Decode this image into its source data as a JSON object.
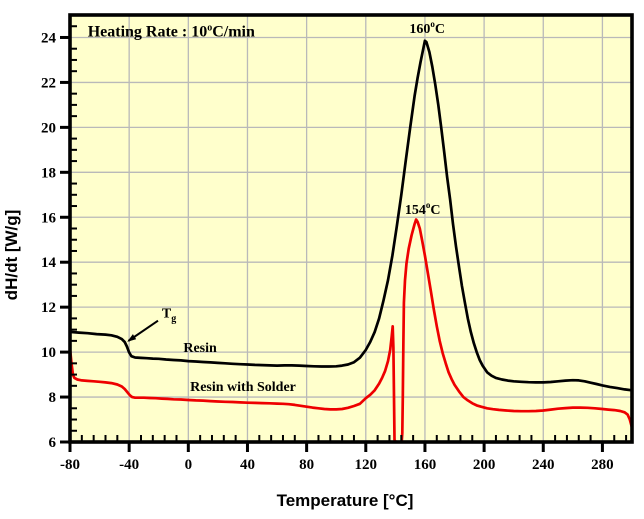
{
  "figure": {
    "plot_bg": "#ffffcc",
    "page_bg": "#ffffff",
    "grid_color": "#b9b9b9",
    "frame_color": "#000000"
  },
  "chart_data": {
    "type": "line",
    "title": "",
    "xlabel": "Temperature [°C]",
    "ylabel": "dH/dt [W/g]",
    "xlim": [
      -80,
      300
    ],
    "ylim": [
      6,
      25
    ],
    "x_major_ticks": [
      -80,
      -40,
      0,
      40,
      80,
      120,
      160,
      200,
      240,
      280
    ],
    "x_minor_step": 8,
    "y_major_ticks": [
      6,
      8,
      10,
      12,
      14,
      16,
      18,
      20,
      22,
      24
    ],
    "y_minor_step": 0.5,
    "grid": true,
    "legend_position": "none",
    "series": [
      {
        "name": "Resin",
        "color": "#000000",
        "peak_temperature_label": "160C",
        "points": [
          [
            -80,
            10.9
          ],
          [
            -74,
            10.87
          ],
          [
            -68,
            10.84
          ],
          [
            -62,
            10.8
          ],
          [
            -56,
            10.78
          ],
          [
            -52,
            10.75
          ],
          [
            -48,
            10.68
          ],
          [
            -45,
            10.58
          ],
          [
            -43,
            10.45
          ],
          [
            -41.5,
            10.25
          ],
          [
            -40,
            9.98
          ],
          [
            -38.5,
            9.82
          ],
          [
            -36,
            9.76
          ],
          [
            -32,
            9.74
          ],
          [
            -28,
            9.73
          ],
          [
            -24,
            9.71
          ],
          [
            -20,
            9.7
          ],
          [
            -15,
            9.67
          ],
          [
            -10,
            9.65
          ],
          [
            -5,
            9.63
          ],
          [
            0,
            9.6
          ],
          [
            5,
            9.58
          ],
          [
            10,
            9.56
          ],
          [
            15,
            9.54
          ],
          [
            20,
            9.52
          ],
          [
            25,
            9.5
          ],
          [
            30,
            9.48
          ],
          [
            35,
            9.46
          ],
          [
            40,
            9.45
          ],
          [
            45,
            9.43
          ],
          [
            50,
            9.42
          ],
          [
            55,
            9.41
          ],
          [
            60,
            9.4
          ],
          [
            65,
            9.41
          ],
          [
            70,
            9.41
          ],
          [
            75,
            9.4
          ],
          [
            80,
            9.38
          ],
          [
            85,
            9.37
          ],
          [
            90,
            9.36
          ],
          [
            95,
            9.36
          ],
          [
            100,
            9.37
          ],
          [
            104,
            9.4
          ],
          [
            108,
            9.45
          ],
          [
            112,
            9.55
          ],
          [
            116,
            9.75
          ],
          [
            120,
            10.1
          ],
          [
            123,
            10.45
          ],
          [
            126,
            10.9
          ],
          [
            129,
            11.5
          ],
          [
            132,
            12.3
          ],
          [
            135,
            13.2
          ],
          [
            138,
            14.3
          ],
          [
            141,
            15.6
          ],
          [
            144,
            17.0
          ],
          [
            147,
            18.5
          ],
          [
            150,
            20.0
          ],
          [
            153,
            21.4
          ],
          [
            155,
            22.2
          ],
          [
            157,
            22.9
          ],
          [
            159,
            23.55
          ],
          [
            160,
            23.85
          ],
          [
            161,
            23.8
          ],
          [
            163,
            23.35
          ],
          [
            165,
            22.7
          ],
          [
            167,
            21.9
          ],
          [
            169,
            21.0
          ],
          [
            171,
            20.0
          ],
          [
            173,
            18.9
          ],
          [
            175,
            17.8
          ],
          [
            177,
            16.8
          ],
          [
            179,
            15.7
          ],
          [
            181,
            14.7
          ],
          [
            183,
            13.8
          ],
          [
            185,
            12.95
          ],
          [
            187,
            12.2
          ],
          [
            189,
            11.5
          ],
          [
            191,
            10.9
          ],
          [
            193,
            10.4
          ],
          [
            195,
            10.0
          ],
          [
            197,
            9.65
          ],
          [
            199,
            9.4
          ],
          [
            202,
            9.1
          ],
          [
            205,
            8.95
          ],
          [
            208,
            8.85
          ],
          [
            212,
            8.78
          ],
          [
            216,
            8.73
          ],
          [
            220,
            8.7
          ],
          [
            225,
            8.68
          ],
          [
            230,
            8.66
          ],
          [
            235,
            8.65
          ],
          [
            240,
            8.65
          ],
          [
            245,
            8.67
          ],
          [
            250,
            8.7
          ],
          [
            255,
            8.73
          ],
          [
            260,
            8.75
          ],
          [
            264,
            8.74
          ],
          [
            268,
            8.7
          ],
          [
            272,
            8.64
          ],
          [
            276,
            8.58
          ],
          [
            280,
            8.52
          ],
          [
            285,
            8.45
          ],
          [
            290,
            8.4
          ],
          [
            295,
            8.34
          ],
          [
            300,
            8.3
          ]
        ]
      },
      {
        "name": "Resin with Solder",
        "color": "#ee0000",
        "peak_temperature_label": "154C",
        "points": [
          [
            -80,
            10.15
          ],
          [
            -79,
            9.5
          ],
          [
            -78,
            8.98
          ],
          [
            -77,
            8.85
          ],
          [
            -75,
            8.78
          ],
          [
            -72,
            8.74
          ],
          [
            -68,
            8.72
          ],
          [
            -64,
            8.7
          ],
          [
            -60,
            8.68
          ],
          [
            -56,
            8.65
          ],
          [
            -52,
            8.62
          ],
          [
            -48,
            8.56
          ],
          [
            -45,
            8.47
          ],
          [
            -43,
            8.36
          ],
          [
            -41,
            8.2
          ],
          [
            -39.5,
            8.08
          ],
          [
            -38,
            8.0
          ],
          [
            -36,
            7.97
          ],
          [
            -33,
            7.97
          ],
          [
            -30,
            7.97
          ],
          [
            -26,
            7.96
          ],
          [
            -22,
            7.95
          ],
          [
            -18,
            7.93
          ],
          [
            -14,
            7.92
          ],
          [
            -10,
            7.9
          ],
          [
            -5,
            7.89
          ],
          [
            0,
            7.87
          ],
          [
            5,
            7.85
          ],
          [
            10,
            7.84
          ],
          [
            15,
            7.82
          ],
          [
            20,
            7.8
          ],
          [
            25,
            7.79
          ],
          [
            30,
            7.78
          ],
          [
            35,
            7.76
          ],
          [
            40,
            7.75
          ],
          [
            45,
            7.74
          ],
          [
            50,
            7.73
          ],
          [
            55,
            7.72
          ],
          [
            60,
            7.71
          ],
          [
            64,
            7.7
          ],
          [
            68,
            7.68
          ],
          [
            72,
            7.65
          ],
          [
            76,
            7.61
          ],
          [
            80,
            7.57
          ],
          [
            84,
            7.53
          ],
          [
            88,
            7.5
          ],
          [
            92,
            7.47
          ],
          [
            96,
            7.45
          ],
          [
            100,
            7.45
          ],
          [
            104,
            7.47
          ],
          [
            108,
            7.52
          ],
          [
            112,
            7.6
          ],
          [
            116,
            7.7
          ],
          [
            120,
            7.95
          ],
          [
            123,
            8.1
          ],
          [
            126,
            8.3
          ],
          [
            129,
            8.6
          ],
          [
            131,
            8.85
          ],
          [
            133,
            9.15
          ],
          [
            135,
            9.6
          ],
          [
            136.5,
            10.1
          ],
          [
            137.5,
            10.7
          ],
          [
            138.2,
            11.15
          ],
          [
            138.7,
            10.2
          ],
          [
            139.1,
            8.0
          ],
          [
            139.4,
            6.1
          ],
          [
            140,
            6.02
          ],
          [
            142,
            6.0
          ],
          [
            144.3,
            6.0
          ],
          [
            144.7,
            6.4
          ],
          [
            145,
            8.0
          ],
          [
            145.4,
            10.5
          ],
          [
            145.8,
            12.2
          ],
          [
            146.5,
            13.2
          ],
          [
            147.5,
            13.95
          ],
          [
            149,
            14.6
          ],
          [
            151,
            15.2
          ],
          [
            153,
            15.7
          ],
          [
            154,
            15.9
          ],
          [
            155,
            15.8
          ],
          [
            156.5,
            15.5
          ],
          [
            158,
            15.0
          ],
          [
            160,
            14.3
          ],
          [
            162,
            13.5
          ],
          [
            164,
            12.7
          ],
          [
            166,
            11.9
          ],
          [
            168,
            11.15
          ],
          [
            170,
            10.5
          ],
          [
            172,
            9.95
          ],
          [
            174,
            9.5
          ],
          [
            176,
            9.1
          ],
          [
            178,
            8.8
          ],
          [
            180,
            8.55
          ],
          [
            183,
            8.25
          ],
          [
            186,
            8.0
          ],
          [
            189,
            7.85
          ],
          [
            192,
            7.72
          ],
          [
            195,
            7.63
          ],
          [
            198,
            7.57
          ],
          [
            202,
            7.5
          ],
          [
            206,
            7.46
          ],
          [
            210,
            7.43
          ],
          [
            215,
            7.4
          ],
          [
            220,
            7.38
          ],
          [
            225,
            7.37
          ],
          [
            230,
            7.37
          ],
          [
            235,
            7.38
          ],
          [
            240,
            7.4
          ],
          [
            245,
            7.44
          ],
          [
            250,
            7.48
          ],
          [
            255,
            7.51
          ],
          [
            260,
            7.53
          ],
          [
            265,
            7.53
          ],
          [
            270,
            7.52
          ],
          [
            275,
            7.5
          ],
          [
            280,
            7.47
          ],
          [
            284,
            7.44
          ],
          [
            288,
            7.42
          ],
          [
            292,
            7.38
          ],
          [
            295,
            7.32
          ],
          [
            297,
            7.22
          ],
          [
            298.5,
            7.0
          ],
          [
            299.5,
            6.75
          ],
          [
            300,
            6.62
          ]
        ]
      }
    ],
    "annotations": [
      {
        "id": "heating-rate",
        "pre": "Heating Rate : 10",
        "sup": "o",
        "post": "C/min",
        "x": -68,
        "y": 24.05,
        "anchor": "start",
        "size": 16
      },
      {
        "id": "peak-160",
        "pre": "160",
        "sup": "o",
        "post": "C",
        "x": 161.5,
        "y": 24.2,
        "anchor": "middle",
        "size": 14
      },
      {
        "id": "peak-154",
        "pre": "154",
        "sup": "o",
        "post": "C",
        "x": 158.5,
        "y": 16.15,
        "anchor": "middle",
        "size": 14
      },
      {
        "id": "tg",
        "pre": "T",
        "sub": "g",
        "x": -13,
        "y": 11.55,
        "anchor": "middle",
        "size": 14
      },
      {
        "id": "resin-label",
        "pre": "Resin",
        "x": 8,
        "y": 10.0,
        "anchor": "middle",
        "size": 14
      },
      {
        "id": "resin-solder-label",
        "pre": "Resin with Solder",
        "x": 37,
        "y": 8.27,
        "anchor": "middle",
        "size": 14
      }
    ],
    "arrow": {
      "from": [
        -20.5,
        11.4
      ],
      "to": [
        -40.5,
        10.5
      ]
    }
  }
}
